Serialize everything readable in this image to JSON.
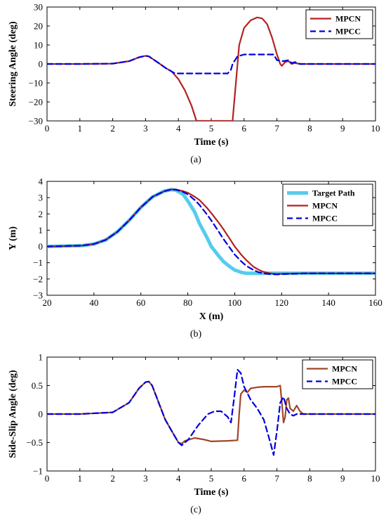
{
  "chart_data": [
    {
      "type": "line",
      "caption": "(a)",
      "xlabel": "Time (s)",
      "ylabel": "Steering Angle (deg)",
      "xlim": [
        0,
        10
      ],
      "ylim": [
        -30,
        30
      ],
      "xticks": [
        "0",
        "1",
        "2",
        "3",
        "4",
        "5",
        "6",
        "7",
        "8",
        "9",
        "10"
      ],
      "yticks": [
        "-30",
        "-20",
        "-10",
        "0",
        "10",
        "20",
        "30"
      ],
      "legend_position": "top-right",
      "grid": false,
      "series": [
        {
          "name": "MPCN",
          "color": "#b22222",
          "dash": "solid",
          "x": [
            0,
            1,
            2,
            2.5,
            2.8,
            3.0,
            3.1,
            3.2,
            3.4,
            3.6,
            3.8,
            4.0,
            4.2,
            4.4,
            4.55,
            4.7,
            5.0,
            5.5,
            5.65,
            5.75,
            5.85,
            6.0,
            6.2,
            6.4,
            6.55,
            6.7,
            6.85,
            7.0,
            7.1,
            7.15,
            7.25,
            7.35,
            7.45,
            7.55,
            7.7,
            8.0,
            9.0,
            10.0
          ],
          "y": [
            0,
            0,
            0.2,
            1.5,
            3.5,
            4.3,
            4.0,
            2.8,
            0.5,
            -2,
            -4,
            -8,
            -14,
            -22,
            -30,
            -30,
            -30,
            -30,
            -30,
            -10,
            10,
            19,
            23,
            24.5,
            24,
            21,
            14,
            5,
            0,
            -1,
            1,
            1.5,
            0,
            0.5,
            0,
            0,
            0,
            0
          ]
        },
        {
          "name": "MPCC",
          "color": "#0000dd",
          "dash": "8,5",
          "x": [
            0,
            1,
            2,
            2.5,
            2.8,
            3.0,
            3.1,
            3.2,
            3.4,
            3.6,
            3.8,
            3.9,
            4.0,
            5.0,
            5.5,
            5.6,
            5.65,
            5.8,
            6.0,
            6.5,
            6.9,
            7.0,
            7.2,
            7.35,
            7.45,
            7.55,
            7.7,
            8.0,
            9.0,
            10.0
          ],
          "y": [
            0,
            0,
            0.2,
            1.5,
            3.5,
            4.3,
            4.0,
            2.8,
            0.5,
            -2,
            -4,
            -5,
            -5,
            -5,
            -5,
            -3,
            0,
            4,
            5,
            5,
            5,
            2,
            1.5,
            2,
            0.5,
            1,
            0,
            0,
            0,
            0
          ]
        }
      ]
    },
    {
      "type": "line",
      "caption": "(b)",
      "xlabel": "X (m)",
      "ylabel": "Y (m)",
      "xlim": [
        20,
        160
      ],
      "ylim": [
        -3,
        4
      ],
      "xticks": [
        "20",
        "40",
        "60",
        "80",
        "100",
        "120",
        "140",
        "160"
      ],
      "yticks": [
        "-3",
        "-2",
        "-1",
        "0",
        "1",
        "2",
        "3",
        "4"
      ],
      "legend_position": "top-right",
      "grid": false,
      "series": [
        {
          "name": "Target Path",
          "color": "#55ccee",
          "dash": "solid",
          "x": [
            20,
            35,
            40,
            45,
            50,
            55,
            60,
            65,
            70,
            73,
            75,
            78,
            80,
            83,
            85,
            88,
            90,
            93,
            95,
            98,
            100,
            103,
            105,
            110,
            115,
            120,
            130,
            140,
            150,
            160
          ],
          "y": [
            0,
            0.05,
            0.15,
            0.4,
            0.9,
            1.6,
            2.4,
            3.05,
            3.4,
            3.5,
            3.45,
            3.2,
            2.8,
            2.1,
            1.4,
            0.6,
            0,
            -0.55,
            -0.9,
            -1.25,
            -1.45,
            -1.6,
            -1.65,
            -1.65,
            -1.65,
            -1.65,
            -1.65,
            -1.65,
            -1.65,
            -1.65
          ]
        },
        {
          "name": "MPCN",
          "color": "#b22222",
          "dash": "solid",
          "x": [
            20,
            35,
            40,
            45,
            50,
            55,
            60,
            65,
            70,
            73,
            75,
            78,
            80,
            83,
            85,
            88,
            90,
            93,
            95,
            98,
            100,
            103,
            105,
            108,
            110,
            112,
            115,
            118,
            120,
            130,
            140,
            150,
            160
          ],
          "y": [
            0,
            0.05,
            0.15,
            0.4,
            0.9,
            1.6,
            2.4,
            3.05,
            3.4,
            3.5,
            3.5,
            3.4,
            3.3,
            3.05,
            2.85,
            2.4,
            2.05,
            1.5,
            1.1,
            0.45,
            0,
            -0.55,
            -0.85,
            -1.25,
            -1.42,
            -1.55,
            -1.65,
            -1.7,
            -1.68,
            -1.65,
            -1.65,
            -1.65,
            -1.65
          ]
        },
        {
          "name": "MPCC",
          "color": "#0000dd",
          "dash": "8,5",
          "x": [
            20,
            35,
            40,
            45,
            50,
            55,
            60,
            65,
            70,
            73,
            75,
            78,
            80,
            83,
            85,
            88,
            90,
            93,
            95,
            98,
            100,
            103,
            105,
            108,
            110,
            112,
            115,
            118,
            120,
            130,
            140,
            150,
            160
          ],
          "y": [
            0,
            0.05,
            0.15,
            0.4,
            0.9,
            1.6,
            2.4,
            3.05,
            3.4,
            3.5,
            3.48,
            3.35,
            3.2,
            2.85,
            2.55,
            2.0,
            1.6,
            0.95,
            0.5,
            -0.1,
            -0.5,
            -0.95,
            -1.2,
            -1.45,
            -1.58,
            -1.65,
            -1.7,
            -1.72,
            -1.7,
            -1.65,
            -1.65,
            -1.65,
            -1.65
          ]
        }
      ]
    },
    {
      "type": "line",
      "caption": "(c)",
      "xlabel": "Time (s)",
      "ylabel": "Side-Slip Angle (deg)",
      "xlim": [
        0,
        10
      ],
      "ylim": [
        -1,
        1
      ],
      "xticks": [
        "0",
        "1",
        "2",
        "3",
        "4",
        "5",
        "6",
        "7",
        "8",
        "9",
        "10"
      ],
      "yticks": [
        "-1",
        "-0.5",
        "0",
        "0.5",
        "1"
      ],
      "legend_position": "top-right",
      "grid": false,
      "series": [
        {
          "name": "MPCN",
          "color": "#a0462a",
          "dash": "solid",
          "x": [
            0,
            1,
            2,
            2.5,
            2.8,
            3.0,
            3.1,
            3.2,
            3.4,
            3.6,
            3.8,
            4.0,
            4.1,
            4.2,
            4.5,
            4.8,
            5.0,
            5.5,
            5.8,
            5.85,
            5.9,
            6.0,
            6.1,
            6.2,
            6.4,
            6.6,
            7.0,
            7.1,
            7.15,
            7.2,
            7.25,
            7.3,
            7.35,
            7.4,
            7.5,
            7.6,
            7.7,
            7.8,
            8.0,
            9.0,
            10.0
          ],
          "y": [
            0,
            0,
            0.03,
            0.2,
            0.45,
            0.56,
            0.57,
            0.5,
            0.2,
            -0.1,
            -0.3,
            -0.5,
            -0.52,
            -0.47,
            -0.42,
            -0.45,
            -0.48,
            -0.47,
            -0.46,
            0,
            0.35,
            0.42,
            0.38,
            0.45,
            0.47,
            0.48,
            0.48,
            0.5,
            0.2,
            -0.15,
            -0.05,
            0.25,
            0.28,
            0.1,
            0.05,
            0.15,
            0.05,
            0,
            0,
            0,
            0
          ]
        },
        {
          "name": "MPCC",
          "color": "#0000dd",
          "dash": "8,5",
          "x": [
            0,
            1,
            2,
            2.5,
            2.8,
            3.0,
            3.1,
            3.2,
            3.4,
            3.6,
            3.8,
            4.0,
            4.1,
            4.3,
            4.6,
            4.9,
            5.1,
            5.3,
            5.5,
            5.6,
            5.7,
            5.8,
            5.9,
            6.0,
            6.2,
            6.4,
            6.6,
            6.8,
            6.9,
            7.0,
            7.1,
            7.2,
            7.3,
            7.4,
            7.5,
            7.6,
            7.7,
            8.0,
            9.0,
            10.0
          ],
          "y": [
            0,
            0,
            0.03,
            0.2,
            0.45,
            0.56,
            0.57,
            0.5,
            0.2,
            -0.1,
            -0.3,
            -0.5,
            -0.55,
            -0.45,
            -0.2,
            0,
            0.05,
            0.05,
            -0.05,
            -0.15,
            0.3,
            0.78,
            0.72,
            0.48,
            0.25,
            0.1,
            -0.1,
            -0.5,
            -0.72,
            -0.3,
            0.2,
            0.3,
            0.1,
            0,
            -0.03,
            0,
            0,
            0,
            0,
            0
          ]
        }
      ]
    }
  ]
}
